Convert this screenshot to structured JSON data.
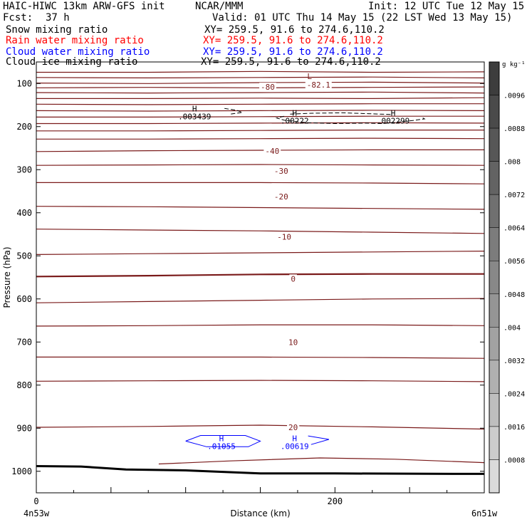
{
  "header": {
    "model_line": "HAIC-HIWC 13km ARW-GFS init",
    "org": "NCAR/MMM",
    "init": "Init: 12 UTC Tue 12 May 15",
    "fcst_label": "Fcst:",
    "fcst_value": "37 h",
    "valid": "Valid: 01 UTC Thu 14 May 15 (22 LST Wed 13 May 15)"
  },
  "fields": [
    {
      "name": "Snow mixing ratio",
      "xy": "XY= 259.5, 91.6 to 274.6,110.2",
      "color": "#000000"
    },
    {
      "name": "Rain water mixing ratio",
      "xy": "XY= 259.5, 91.6 to 274.6,110.2",
      "color": "#ff0000"
    },
    {
      "name": "Cloud water mixing ratio",
      "xy": "XY= 259.5, 91.6 to 274.6,110.2",
      "color": "#0000ff"
    },
    {
      "name": "Cloud ice mixing ratio",
      "xy": "XY= 259.5, 91.6 to 274.6,110.2",
      "color": "#000000"
    }
  ],
  "colors": {
    "temperature": "#7a1a1a",
    "snow": "#000000",
    "cloud_water": "#0000ff",
    "terrain": "#000000"
  },
  "chart_data": {
    "type": "line",
    "xlabel": "Distance (km)",
    "ylabel": "Pressure (hPa)",
    "xlim": [
      0,
      300
    ],
    "ylim": [
      1050,
      50
    ],
    "x_ticks": [
      0,
      200
    ],
    "y_ticks": [
      100,
      200,
      300,
      400,
      500,
      600,
      700,
      800,
      900,
      1000
    ],
    "x_end_labels": [
      "4n53w",
      "6n51w"
    ],
    "isotherm_labels": [
      {
        "text": "-80",
        "x": 155,
        "p": 108
      },
      {
        "text": "-82.1",
        "x": 189,
        "p": 103
      },
      {
        "text": "-40",
        "x": 158,
        "p": 257
      },
      {
        "text": "-30",
        "x": 164,
        "p": 303
      },
      {
        "text": "-20",
        "x": 164,
        "p": 362
      },
      {
        "text": "-10",
        "x": 166,
        "p": 456
      },
      {
        "text": "0",
        "x": 172,
        "p": 553
      },
      {
        "text": "10",
        "x": 172,
        "p": 700
      },
      {
        "text": "20",
        "x": 172,
        "p": 898
      }
    ],
    "temperature_lines": [
      {
        "x": [
          0,
          75,
          150,
          225,
          300
        ],
        "p": [
          74,
          74,
          72,
          74,
          73
        ]
      },
      {
        "x": [
          0,
          75,
          150,
          225,
          300
        ],
        "p": [
          86,
          87,
          86,
          85,
          87
        ]
      },
      {
        "x": [
          0,
          75,
          150,
          225,
          300
        ],
        "p": [
          99,
          100,
          98,
          97,
          99
        ]
      },
      {
        "x": [
          0,
          75,
          150,
          225,
          300
        ],
        "p": [
          110,
          109,
          110,
          109,
          108
        ]
      },
      {
        "x": [
          0,
          75,
          150,
          225,
          300
        ],
        "p": [
          121,
          122,
          121,
          120,
          122
        ]
      },
      {
        "x": [
          0,
          75,
          150,
          225,
          300
        ],
        "p": [
          135,
          135,
          134,
          135,
          133
        ]
      },
      {
        "x": [
          0,
          75,
          150,
          225,
          300
        ],
        "p": [
          148,
          149,
          148,
          147,
          147
        ]
      },
      {
        "x": [
          0,
          75,
          150,
          225,
          300
        ],
        "p": [
          163,
          164,
          163,
          162,
          163
        ]
      },
      {
        "x": [
          0,
          75,
          150,
          225,
          300
        ],
        "p": [
          178,
          178,
          177,
          176,
          176
        ]
      },
      {
        "x": [
          0,
          75,
          150,
          225,
          300
        ],
        "p": [
          193,
          193,
          192,
          191,
          192
        ]
      },
      {
        "x": [
          0,
          75,
          150,
          225,
          300
        ],
        "p": [
          210,
          210,
          209,
          208,
          208
        ]
      },
      {
        "x": [
          0,
          75,
          150,
          225,
          300
        ],
        "p": [
          229,
          229,
          228,
          227,
          228
        ]
      },
      {
        "x": [
          0,
          75,
          150,
          225,
          300
        ],
        "p": [
          258,
          256,
          255,
          254,
          254
        ]
      },
      {
        "x": [
          0,
          75,
          150,
          225,
          300
        ],
        "p": [
          290,
          289,
          288,
          289,
          290
        ]
      },
      {
        "x": [
          0,
          75,
          150,
          225,
          300
        ],
        "p": [
          330,
          330,
          330,
          331,
          333
        ]
      },
      {
        "x": [
          0,
          75,
          150,
          225,
          300
        ],
        "p": [
          385,
          386,
          388,
          390,
          392
        ]
      },
      {
        "x": [
          0,
          75,
          150,
          225,
          300
        ],
        "p": [
          438,
          440,
          442,
          445,
          448
        ]
      },
      {
        "x": [
          0,
          75,
          150,
          225,
          300
        ],
        "p": [
          497,
          495,
          493,
          491,
          489
        ]
      },
      {
        "x": [
          0,
          75,
          150,
          225,
          300
        ],
        "p": [
          548,
          546,
          543,
          542,
          542
        ],
        "bold": true
      },
      {
        "x": [
          0,
          75,
          150,
          225,
          300
        ],
        "p": [
          609,
          606,
          603,
          600,
          599
        ]
      },
      {
        "x": [
          0,
          75,
          150,
          225,
          300
        ],
        "p": [
          663,
          662,
          660,
          660,
          662
        ]
      },
      {
        "x": [
          0,
          75,
          150,
          225,
          300
        ],
        "p": [
          735,
          735,
          735,
          736,
          738
        ]
      },
      {
        "x": [
          0,
          75,
          150,
          225,
          300
        ],
        "p": [
          791,
          790,
          789,
          790,
          792
        ]
      },
      {
        "x": [
          0,
          75,
          150,
          225,
          300
        ],
        "p": [
          898,
          896,
          893,
          897,
          902
        ]
      },
      {
        "x": [
          82,
          130,
          190,
          240,
          300
        ],
        "p": [
          983,
          976,
          969,
          972,
          980
        ]
      }
    ],
    "terrain": {
      "x": [
        0,
        30,
        60,
        100,
        150,
        200,
        280,
        300
      ],
      "p": [
        988,
        989,
        996,
        998,
        1005,
        1005,
        1006,
        1006
      ]
    },
    "extrema": [
      {
        "type": "L",
        "x": 183,
        "p": 90,
        "value": "",
        "color": "#7a1a1a"
      },
      {
        "type": "H",
        "x": 106,
        "p": 165,
        "value": ".003439",
        "color": "#000000"
      },
      {
        "type": "H",
        "x": 173,
        "p": 175,
        "value": ".00222",
        "color": "#000000"
      },
      {
        "type": "H",
        "x": 239,
        "p": 175,
        "value": ".002299",
        "color": "#000000"
      },
      {
        "type": "H",
        "x": 124,
        "p": 930,
        "value": ".01055",
        "color": "#0000ff"
      },
      {
        "type": "H",
        "x": 173,
        "p": 930,
        "value": ".00619",
        "color": "#0000ff"
      }
    ],
    "snow_contours": [
      {
        "x": [
          126,
          134,
          138,
          130
        ],
        "p": [
          158,
          162,
          167,
          171
        ]
      },
      {
        "x": [
          166,
          161,
          167,
          182,
          200,
          220,
          232,
          238,
          252,
          260,
          258
        ],
        "p": [
          176,
          180,
          186,
          191,
          193,
          192,
          193,
          191,
          186,
          182,
          178
        ]
      },
      {
        "x": [
          170,
          185,
          205,
          222,
          238
        ],
        "p": [
          171,
          169,
          168,
          170,
          172
        ]
      }
    ],
    "cloud_water_contours": [
      {
        "x": [
          100,
          110,
          140,
          150,
          142,
          114,
          100
        ],
        "p": [
          930,
          917,
          917,
          930,
          943,
          943,
          930
        ]
      },
      {
        "x": [
          182,
          196,
          184
        ],
        "p": [
          918,
          926,
          938
        ]
      }
    ],
    "colorbar": {
      "unit": "g kg⁻¹",
      "labels": [
        ".0096",
        ".0088",
        ".008",
        ".0072",
        ".0064",
        ".0056",
        ".0048",
        ".004",
        ".0032",
        ".0024",
        ".0016",
        ".0008"
      ],
      "fills": [
        "#3d3d3d",
        "#4a4a4a",
        "#575757",
        "#636363",
        "#707070",
        "#7c7c7c",
        "#888888",
        "#959595",
        "#a2a2a2",
        "#b0b0b0",
        "#bebebe",
        "#cccccc",
        "#dadada"
      ]
    }
  }
}
